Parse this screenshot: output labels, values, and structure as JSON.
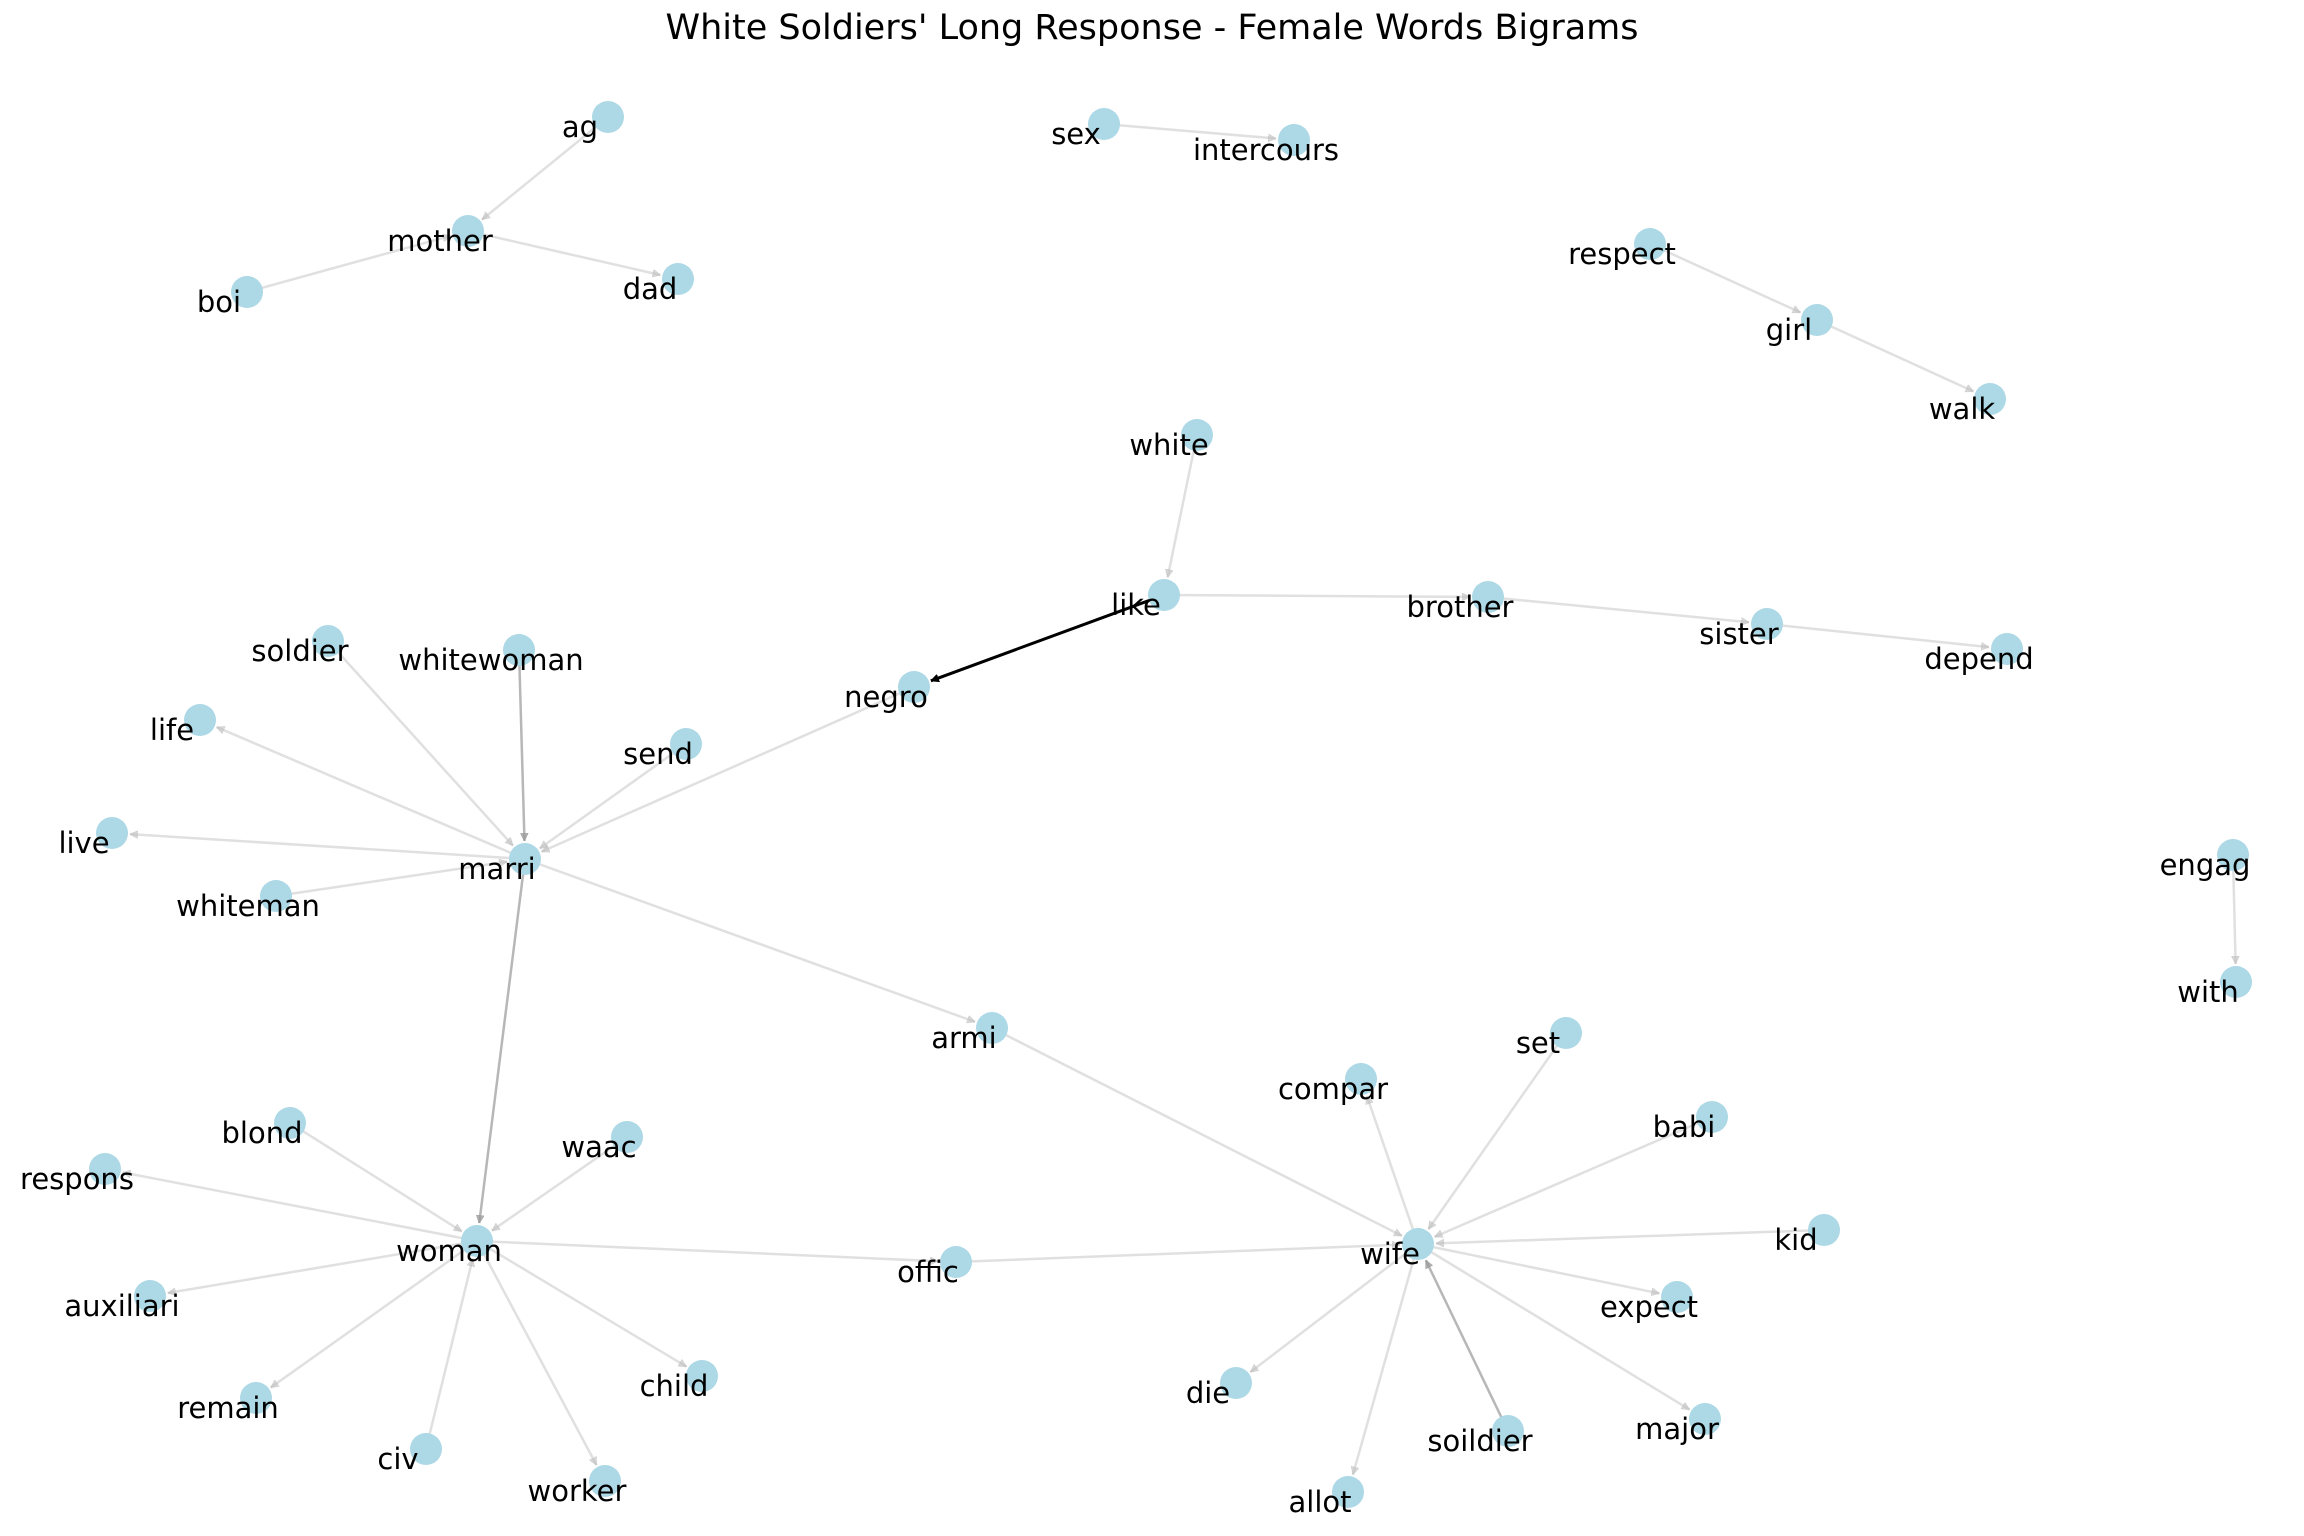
{
  "title": "White Soldiers' Long Response - Female Words Bigrams",
  "colors": {
    "node": "#add8e6",
    "edge_light": "#bbbbbb",
    "edge_medium": "#999999",
    "edge_strong": "#000000",
    "label": "#000000",
    "background": "#ffffff"
  },
  "nodes": [
    "ag",
    "mother",
    "boi",
    "dad",
    "sex",
    "intercours",
    "respect",
    "girl",
    "walk",
    "white",
    "like",
    "brother",
    "sister",
    "depend",
    "negro",
    "soldier",
    "whitewoman",
    "send",
    "life",
    "live",
    "whiteman",
    "marri",
    "armi",
    "engag",
    "with",
    "blond",
    "waac",
    "respons",
    "woman",
    "auxiliari",
    "remain",
    "civ",
    "worker",
    "child",
    "offic",
    "compar",
    "set",
    "babi",
    "kid",
    "wife",
    "expect",
    "die",
    "soildier",
    "major",
    "allot"
  ],
  "edges": [
    {
      "source": "ag",
      "target": "mother",
      "weight": 1
    },
    {
      "source": "boi",
      "target": "mother",
      "weight": 1
    },
    {
      "source": "mother",
      "target": "dad",
      "weight": 1
    },
    {
      "source": "sex",
      "target": "intercours",
      "weight": 1
    },
    {
      "source": "respect",
      "target": "girl",
      "weight": 1
    },
    {
      "source": "girl",
      "target": "walk",
      "weight": 1
    },
    {
      "source": "white",
      "target": "like",
      "weight": 1
    },
    {
      "source": "like",
      "target": "negro",
      "weight": 3
    },
    {
      "source": "like",
      "target": "brother",
      "weight": 1
    },
    {
      "source": "brother",
      "target": "sister",
      "weight": 1
    },
    {
      "source": "sister",
      "target": "depend",
      "weight": 1
    },
    {
      "source": "negro",
      "target": "marri",
      "weight": 1
    },
    {
      "source": "soldier",
      "target": "marri",
      "weight": 1
    },
    {
      "source": "whitewoman",
      "target": "marri",
      "weight": 2
    },
    {
      "source": "send",
      "target": "marri",
      "weight": 1
    },
    {
      "source": "marri",
      "target": "life",
      "weight": 1
    },
    {
      "source": "marri",
      "target": "live",
      "weight": 1
    },
    {
      "source": "whiteman",
      "target": "marri",
      "weight": 1
    },
    {
      "source": "marri",
      "target": "armi",
      "weight": 1
    },
    {
      "source": "marri",
      "target": "woman",
      "weight": 2
    },
    {
      "source": "armi",
      "target": "wife",
      "weight": 1
    },
    {
      "source": "engag",
      "target": "with",
      "weight": 1
    },
    {
      "source": "blond",
      "target": "woman",
      "weight": 1
    },
    {
      "source": "waac",
      "target": "woman",
      "weight": 1
    },
    {
      "source": "woman",
      "target": "respons",
      "weight": 1
    },
    {
      "source": "woman",
      "target": "auxiliari",
      "weight": 1
    },
    {
      "source": "woman",
      "target": "remain",
      "weight": 1
    },
    {
      "source": "civ",
      "target": "woman",
      "weight": 1
    },
    {
      "source": "woman",
      "target": "worker",
      "weight": 1
    },
    {
      "source": "woman",
      "target": "child",
      "weight": 1
    },
    {
      "source": "woman",
      "target": "offic",
      "weight": 1
    },
    {
      "source": "offic",
      "target": "wife",
      "weight": 1
    },
    {
      "source": "wife",
      "target": "compar",
      "weight": 1
    },
    {
      "source": "set",
      "target": "wife",
      "weight": 1
    },
    {
      "source": "babi",
      "target": "wife",
      "weight": 1
    },
    {
      "source": "kid",
      "target": "wife",
      "weight": 1
    },
    {
      "source": "wife",
      "target": "expect",
      "weight": 1
    },
    {
      "source": "wife",
      "target": "die",
      "weight": 1
    },
    {
      "source": "soildier",
      "target": "wife",
      "weight": 2
    },
    {
      "source": "wife",
      "target": "major",
      "weight": 1
    },
    {
      "source": "wife",
      "target": "allot",
      "weight": 1
    }
  ]
}
